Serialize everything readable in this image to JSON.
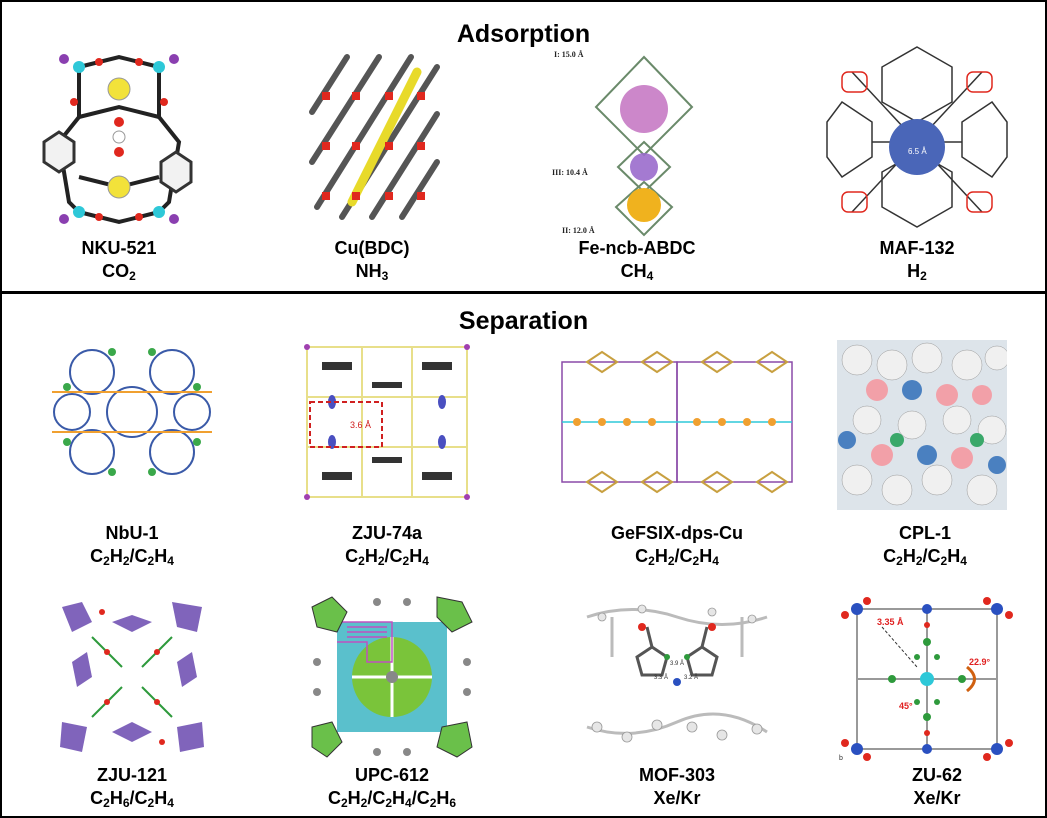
{
  "sections": {
    "adsorption": "Adsorption",
    "separation": "Separation"
  },
  "adsorption_items": [
    {
      "name": "NKU-521",
      "gas": "CO2"
    },
    {
      "name": "Cu(BDC)",
      "gas": "NH3"
    },
    {
      "name": "Fe-ncb-ABDC",
      "gas": "CH4",
      "pore_labels": [
        "I: 15.0 Å",
        "III: 10.4 Å",
        "II: 12.0 Å"
      ]
    },
    {
      "name": "MAF-132",
      "gas": "H2",
      "pore_label": "6.5 Å"
    }
  ],
  "separation_items": [
    {
      "name": "NbU-1",
      "gas": "C2H2/C2H4"
    },
    {
      "name": "ZJU-74a",
      "gas": "C2H2/C2H4",
      "pore_label": "3.6 Å"
    },
    {
      "name": "GeFSIX-dps-Cu",
      "gas": "C2H2/C2H4"
    },
    {
      "name": "CPL-1",
      "gas": "C2H2/C2H4"
    },
    {
      "name": "ZJU-121",
      "gas": "C2H6/C2H4"
    },
    {
      "name": "UPC-612",
      "gas": "C2H2/C2H4/C2H6"
    },
    {
      "name": "MOF-303",
      "gas": "Xe/Kr",
      "pore_labels": [
        "3.9 Å",
        "3.3 Å",
        "3.2 Å"
      ]
    },
    {
      "name": "ZU-62",
      "gas": "Xe/Kr",
      "pore_labels": [
        "3.35 Å",
        "22.9°",
        "45°"
      ],
      "panel_letter": "b"
    }
  ],
  "colors": {
    "oxygen": "#e0281e",
    "metal_cyan": "#2ec8d8",
    "carbon": "#444444",
    "purple": "#8a3fb0",
    "yellow": "#f2e23a",
    "green": "#2e9a3c",
    "blue_sphere": "#4a66b8",
    "pink_sphere": "#c77ac4",
    "pink_atom": "#f2a0a8"
  }
}
